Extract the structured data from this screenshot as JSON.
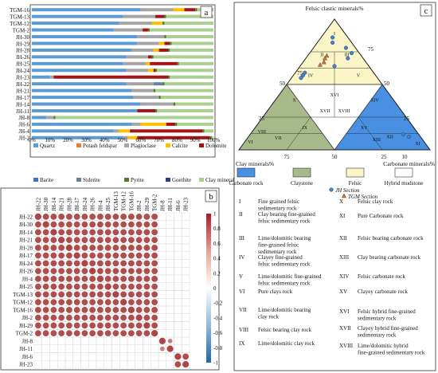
{
  "panel_labels": {
    "a": "a",
    "b": "b",
    "c": "c"
  },
  "chart_data": [
    {
      "type": "bar",
      "stacked": true,
      "orientation": "horizontal",
      "panel": "a",
      "categories": [
        "TGM-16",
        "TGM-13",
        "TGM-12",
        "TGM-2",
        "JH-30",
        "JH-29",
        "JH-28",
        "JH-26",
        "JH-25",
        "JH-24",
        "JH-23",
        "JH-22",
        "JH-21",
        "JH-17",
        "JH-14",
        "JH-11",
        "JH-8",
        "JH-6",
        "JH-4",
        "JH-2"
      ],
      "x_ticks": [
        "0%",
        "10%",
        "20%",
        "30%",
        "40%",
        "50%",
        "60%",
        "70%",
        "80%",
        "90%",
        "100%"
      ],
      "xlim": [
        0,
        100
      ],
      "series": [
        {
          "name": "Quartz",
          "color": "#5b9bd5",
          "values": [
            60,
            50,
            48,
            45,
            58,
            58,
            55,
            52,
            50,
            52,
            10,
            52,
            55,
            56,
            60,
            58,
            8,
            55,
            45,
            50
          ]
        },
        {
          "name": "Potash feldspar",
          "color": "#ed7d31",
          "values": [
            0,
            0,
            0,
            0,
            0,
            0,
            0,
            0,
            0,
            0,
            0,
            0,
            0,
            0,
            0,
            0,
            0,
            0,
            0,
            0
          ]
        },
        {
          "name": "Plagioclase",
          "color": "#a5a5a5",
          "values": [
            18,
            18,
            18,
            16,
            15,
            12,
            12,
            12,
            13,
            12,
            2,
            15,
            12,
            14,
            18,
            0,
            4,
            5,
            3,
            3
          ]
        },
        {
          "name": "Calcite",
          "color": "#ffc000",
          "values": [
            6,
            0,
            6,
            0,
            0,
            3,
            3,
            0,
            2,
            3,
            0,
            0,
            0,
            0,
            0,
            0,
            0,
            14,
            6,
            5
          ]
        },
        {
          "name": "Dolomite",
          "color": "#a31515",
          "values": [
            6,
            5,
            0,
            3,
            0,
            3,
            5,
            2,
            15,
            1,
            63,
            0,
            0,
            0,
            0,
            10,
            0,
            5,
            40,
            40
          ]
        },
        {
          "name": "Barite",
          "color": "#4472c4",
          "values": [
            0,
            0,
            0,
            0,
            0,
            0,
            0,
            0,
            0,
            0,
            0,
            0,
            0,
            0,
            0,
            0,
            0,
            0,
            0,
            0
          ]
        },
        {
          "name": "Siderite",
          "color": "#6b7fa3",
          "values": [
            0,
            0,
            0,
            0,
            0,
            0,
            0,
            0,
            0,
            0,
            0,
            5,
            0,
            0,
            0,
            0,
            0,
            0,
            0,
            0
          ]
        },
        {
          "name": "Pyrite",
          "color": "#4f7a2a",
          "values": [
            1,
            1,
            1,
            1,
            1,
            1,
            1,
            1,
            1,
            1,
            1,
            1,
            1,
            1,
            1,
            1,
            1,
            1,
            1,
            1
          ]
        },
        {
          "name": "Goethite",
          "color": "#264478",
          "values": [
            0,
            0,
            0,
            0,
            0,
            0,
            0,
            0,
            0,
            0,
            0,
            0,
            0,
            0,
            0,
            0,
            0,
            0,
            0,
            0
          ]
        },
        {
          "name": "Clay mineral",
          "color": "#a9d08e",
          "values": [
            9,
            26,
            27,
            35,
            26,
            23,
            24,
            33,
            19,
            31,
            24,
            27,
            32,
            29,
            21,
            31,
            87,
            20,
            5,
            1
          ]
        }
      ]
    },
    {
      "type": "heatmap",
      "panel": "b",
      "labels": [
        "JH-22",
        "JH-30",
        "JH-14",
        "JH-21",
        "JH-28",
        "JH-17",
        "JH-24",
        "JH-26",
        "JH-4",
        "JH-25",
        "TGM-13",
        "TGM-12",
        "TGM-16",
        "JH-2",
        "JH-29",
        "TGM-2",
        "JH-8",
        "JH-11",
        "JH-6",
        "JH-23"
      ],
      "colorbar_ticks": [
        "1",
        "0.8",
        "0.6",
        "0.4",
        "0.2",
        "0",
        "-0.2",
        "-0.4",
        "-0.6",
        "-0.8",
        "-1"
      ],
      "range": [
        -1,
        1
      ],
      "group_a": [
        "JH-22",
        "JH-30",
        "JH-14",
        "JH-21",
        "JH-28",
        "JH-17",
        "JH-24",
        "JH-26",
        "JH-4",
        "JH-25",
        "TGM-13",
        "TGM-12",
        "TGM-16",
        "JH-2",
        "JH-29",
        "TGM-2"
      ],
      "within_group_correlation": 0.95,
      "JH-6_JH-23_correlation": 0.95,
      "JH-8_JH-11_correlation": 0.7
    },
    {
      "type": "ternary",
      "panel": "c",
      "axes": {
        "top": "Felsic clastic minerals%",
        "left": "Clay minerals%",
        "right": "Carbonate minerals%"
      },
      "ticks": [
        "0",
        "25",
        "50",
        "75",
        "100"
      ],
      "region_labels": [
        "I",
        "II",
        "III",
        "IV",
        "V",
        "VI",
        "VII",
        "VIII",
        "IX",
        "X",
        "XI",
        "XII",
        "XIII",
        "XIV",
        "XV",
        "XVI",
        "XVII",
        "XVIII"
      ],
      "points": {
        "JH Section": [
          [
            86,
            8,
            6
          ],
          [
            82,
            10,
            8
          ],
          [
            78,
            5,
            17
          ],
          [
            74,
            4,
            22
          ],
          [
            70,
            8,
            22
          ],
          [
            64,
            18,
            18
          ],
          [
            59,
            36,
            5
          ],
          [
            57,
            38,
            5
          ],
          [
            55,
            40,
            5
          ],
          [
            10,
            6,
            84
          ],
          [
            12,
            8,
            80
          ]
        ],
        "TGM Section": [
          [
            72,
            18,
            10
          ],
          [
            70,
            20,
            10
          ],
          [
            67,
            22,
            11
          ],
          [
            65,
            25,
            10
          ]
        ]
      }
    }
  ],
  "legend_c": {
    "items": [
      {
        "name": "Carbonate rock",
        "color": "#4a90e2"
      },
      {
        "name": "Claystone",
        "color": "#a8b98a"
      },
      {
        "name": "Felsic",
        "color": "#fbf6c8"
      },
      {
        "name": "Hybrid mudstone",
        "color": "#ffffff"
      }
    ],
    "jh_label": "JH Section",
    "tgm_label": "TGM Section"
  },
  "classification": {
    "left": [
      {
        "num": "I",
        "lines": [
          "Fine grained felsic",
          "sedimentary rock"
        ]
      },
      {
        "num": "II",
        "lines": [
          "Clay bearing fine-grained",
          "felsic sedimentary rock"
        ]
      },
      {
        "num": "III",
        "lines": [
          "Lime/dolomitic bearing",
          "fine-grained felsic",
          "sedimentary rock"
        ]
      },
      {
        "num": "IV",
        "lines": [
          "Clayey fine-grained",
          "felsic sedimentary rock"
        ]
      },
      {
        "num": "V",
        "lines": [
          "Lime/dolomitic fine-grained",
          "felsic sedimentary rock"
        ]
      },
      {
        "num": "VI",
        "lines": [
          "Pure clays rock"
        ]
      },
      {
        "num": "VII",
        "lines": [
          "Lime/dolomitic bearing",
          "clay rock"
        ]
      },
      {
        "num": "VIII",
        "lines": [
          "Felsic bearing clay rock"
        ]
      },
      {
        "num": "IX",
        "lines": [
          "Lime/dolomitic clay rock"
        ]
      }
    ],
    "right": [
      {
        "num": "X",
        "lines": [
          "Felsic clay rock"
        ]
      },
      {
        "num": "XI",
        "lines": [
          "Pure Carbonate rock"
        ]
      },
      {
        "num": "XII",
        "lines": [
          "Felsic bearing carbonate rock"
        ]
      },
      {
        "num": "XIII",
        "lines": [
          "Clay bearing carbonate rock"
        ]
      },
      {
        "num": "XIV",
        "lines": [
          "Felsic carbonate rock"
        ]
      },
      {
        "num": "XV",
        "lines": [
          "Clayey carbonate rock"
        ]
      },
      {
        "num": "XVI",
        "lines": [
          "Felsic hybrid fine-grained",
          "sedimentary rock"
        ]
      },
      {
        "num": "XVII",
        "lines": [
          "Clayey hybrid fine-grained",
          "sedimentary rock"
        ]
      },
      {
        "num": "XVIII",
        "lines": [
          "Lime/dolomitic hybrid",
          "fine-grained sedimentary rock"
        ]
      }
    ]
  }
}
